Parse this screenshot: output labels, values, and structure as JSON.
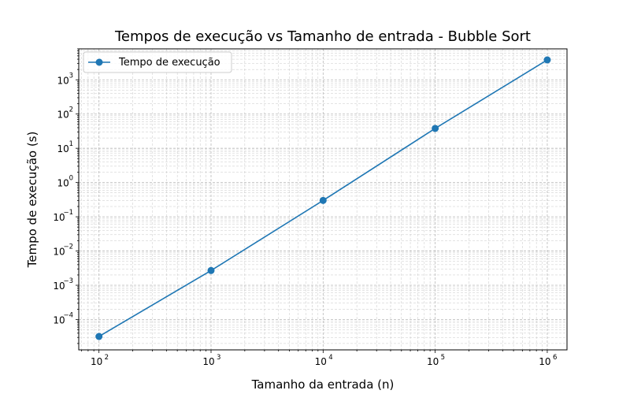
{
  "chart_data": {
    "type": "line",
    "title": "Tempos de execução vs Tamanho de entrada - Bubble Sort",
    "xlabel": "Tamanho da entrada (n)",
    "ylabel": "Tempo de execução (s)",
    "xscale": "log",
    "yscale": "log",
    "xlim": [
      66,
      1500000
    ],
    "ylim": [
      1.3e-05,
      8000
    ],
    "x_ticks": [
      {
        "base": "10",
        "exp": "2",
        "value": 100
      },
      {
        "base": "10",
        "exp": "3",
        "value": 1000
      },
      {
        "base": "10",
        "exp": "4",
        "value": 10000
      },
      {
        "base": "10",
        "exp": "5",
        "value": 100000
      },
      {
        "base": "10",
        "exp": "6",
        "value": 1000000
      }
    ],
    "y_ticks": [
      {
        "base": "10",
        "exp": "−4",
        "value": 0.0001
      },
      {
        "base": "10",
        "exp": "−3",
        "value": 0.001
      },
      {
        "base": "10",
        "exp": "−2",
        "value": 0.01
      },
      {
        "base": "10",
        "exp": "−1",
        "value": 0.1
      },
      {
        "base": "10",
        "exp": "0",
        "value": 1
      },
      {
        "base": "10",
        "exp": "1",
        "value": 10
      },
      {
        "base": "10",
        "exp": "2",
        "value": 100
      },
      {
        "base": "10",
        "exp": "3",
        "value": 1000
      }
    ],
    "grid": "both (major and minor, dashed)",
    "legend_position": "top-left",
    "series": [
      {
        "name": "Tempo de execução",
        "color": "#1f77b4",
        "marker": "circle",
        "x": [
          100,
          1000,
          10000,
          100000,
          1000000
        ],
        "y": [
          3.2e-05,
          0.0027,
          0.3,
          38,
          3800
        ]
      }
    ]
  }
}
